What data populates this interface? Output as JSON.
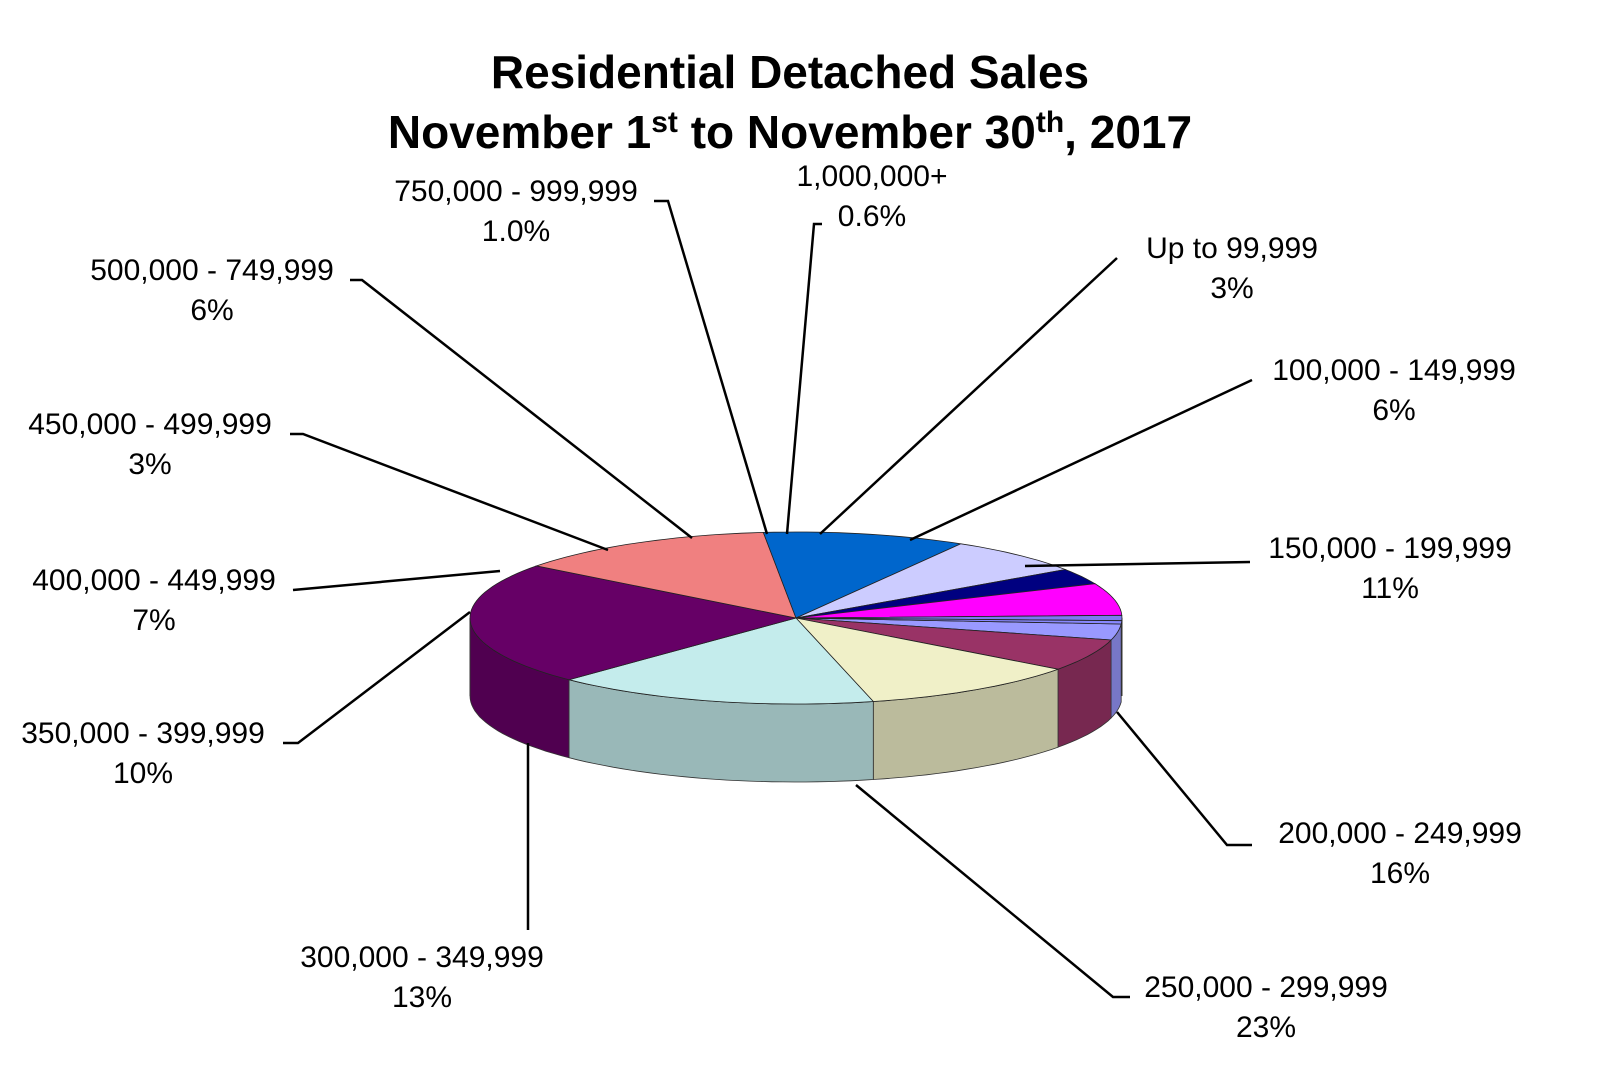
{
  "chart_data": {
    "type": "pie",
    "title_line1": "Residential Detached Sales",
    "title_line2_a": "November 1",
    "title_line2_sup1": "st",
    "title_line2_b": " to November 30",
    "title_line2_sup2": "th",
    "title_line2_c": ", 2017",
    "slices": [
      {
        "label": "Up to 99,999",
        "pct_text": "3%",
        "value": 3.0,
        "color": "#9999ff"
      },
      {
        "label": "100,000 - 149,999",
        "pct_text": "6%",
        "value": 6.0,
        "color": "#993366"
      },
      {
        "label": "150,000 - 199,999",
        "pct_text": "11%",
        "value": 11.0,
        "color": "#f0f0c8"
      },
      {
        "label": "200,000 - 249,999",
        "pct_text": "16%",
        "value": 16.0,
        "color": "#c4ecec"
      },
      {
        "label": "250,000 - 299,999",
        "pct_text": "23%",
        "value": 23.0,
        "color": "#660066"
      },
      {
        "label": "300,000 - 349,999",
        "pct_text": "13%",
        "value": 13.0,
        "color": "#f08080"
      },
      {
        "label": "350,000 - 399,999",
        "pct_text": "10%",
        "value": 10.0,
        "color": "#0066cc"
      },
      {
        "label": "400,000 - 449,999",
        "pct_text": "7%",
        "value": 7.0,
        "color": "#ccccff"
      },
      {
        "label": "450,000 - 499,999",
        "pct_text": "3%",
        "value": 3.0,
        "color": "#000080"
      },
      {
        "label": "500,000 - 749,999",
        "pct_text": "6%",
        "value": 6.0,
        "color": "#ff00ff"
      },
      {
        "label": "750,000 - 999,999",
        "pct_text": "1.0%",
        "value": 1.0,
        "color": "#7b7bf0"
      },
      {
        "label": "1,000,000+",
        "pct_text": "0.6%",
        "value": 0.6,
        "color": "#8888ff"
      }
    ]
  }
}
